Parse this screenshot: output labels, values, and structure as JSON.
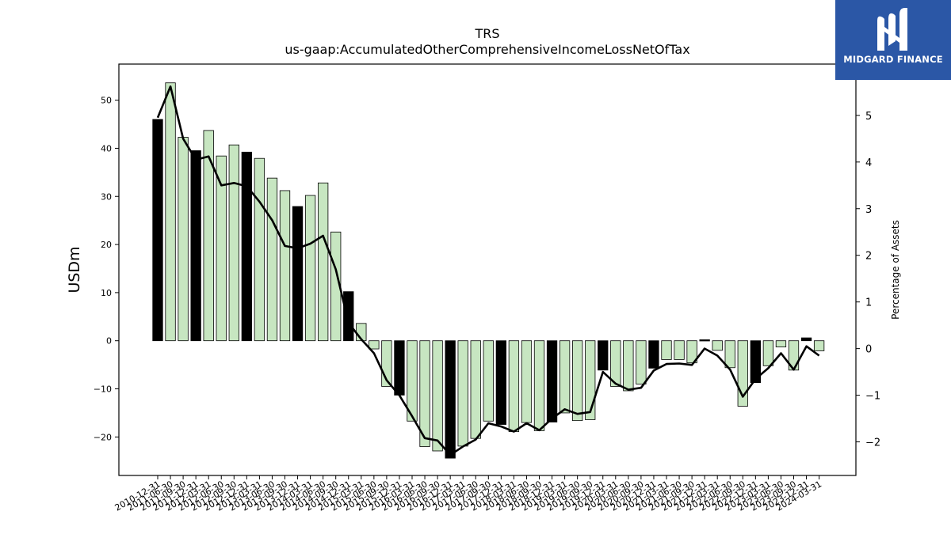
{
  "chart_data": {
    "type": "bar+line",
    "title": "TRS",
    "subtitle": "us-gaap:AccumulatedOtherComprehensiveIncomeLossNetOfTax",
    "ylabel": "USDm",
    "y2label": "Percentage of Assets",
    "ylim": [
      -28,
      57.5
    ],
    "y2lim": [
      -2.72,
      6.1
    ],
    "yticks": [
      -20,
      -10,
      0,
      10,
      20,
      30,
      40,
      50
    ],
    "y2ticks": [
      -2,
      -1,
      0,
      1,
      2,
      3,
      4,
      5
    ],
    "grid": false,
    "categories": [
      "2010-12-31",
      "2011-06-30",
      "2011-09-30",
      "2011-12-31",
      "2012-03-31",
      "2012-06-30",
      "2012-09-30",
      "2012-12-31",
      "2013-03-31",
      "2013-06-30",
      "2013-09-30",
      "2013-12-31",
      "2014-03-31",
      "2014-06-30",
      "2014-09-30",
      "2014-12-31",
      "2015-03-31",
      "2015-06-30",
      "2015-09-30",
      "2015-12-31",
      "2016-03-31",
      "2016-06-30",
      "2016-09-30",
      "2016-12-31",
      "2017-03-31",
      "2017-06-30",
      "2017-09-30",
      "2017-12-31",
      "2018-03-31",
      "2018-06-30",
      "2018-09-30",
      "2018-12-31",
      "2019-03-31",
      "2019-06-30",
      "2019-09-30",
      "2019-12-31",
      "2020-03-31",
      "2020-06-30",
      "2020-09-30",
      "2020-12-31",
      "2021-03-31",
      "2021-06-30",
      "2021-09-30",
      "2021-12-31",
      "2022-03-31",
      "2022-06-30",
      "2022-09-30",
      "2022-12-31",
      "2023-03-31",
      "2023-06-30",
      "2023-09-30",
      "2023-12-31",
      "2024-03-31"
    ],
    "bar_values": [
      46.0,
      53.6,
      42.3,
      39.5,
      43.7,
      38.4,
      40.7,
      39.2,
      37.9,
      33.8,
      31.2,
      27.9,
      30.2,
      32.8,
      22.6,
      10.2,
      3.6,
      -1.7,
      -9.5,
      -11.3,
      -16.7,
      -22.0,
      -22.9,
      -24.4,
      -21.9,
      -20.3,
      -16.7,
      -17.4,
      -18.9,
      -17.0,
      -18.7,
      -16.9,
      -15.0,
      -16.6,
      -16.4,
      -6.1,
      -9.5,
      -10.4,
      -9.0,
      -5.7,
      -3.9,
      -3.9,
      -4.6,
      0.2,
      -2.0,
      -5.6,
      -13.6,
      -8.7,
      -5.2,
      -1.3,
      -6.1,
      0.6,
      -2.1
    ],
    "bar_highlight": [
      true,
      false,
      false,
      true,
      false,
      false,
      false,
      true,
      false,
      false,
      false,
      true,
      false,
      false,
      false,
      true,
      false,
      false,
      false,
      true,
      false,
      false,
      false,
      true,
      false,
      false,
      false,
      true,
      false,
      false,
      false,
      true,
      false,
      false,
      false,
      true,
      false,
      false,
      false,
      true,
      false,
      false,
      false,
      true,
      false,
      false,
      false,
      true,
      false,
      false,
      false,
      true,
      false
    ],
    "line_values": [
      4.95,
      5.62,
      4.5,
      4.05,
      4.12,
      3.5,
      3.55,
      3.48,
      3.15,
      2.75,
      2.2,
      2.15,
      2.25,
      2.42,
      1.7,
      0.55,
      0.2,
      -0.1,
      -0.68,
      -1.0,
      -1.45,
      -1.92,
      -1.97,
      -2.28,
      -2.1,
      -1.95,
      -1.6,
      -1.67,
      -1.78,
      -1.6,
      -1.75,
      -1.5,
      -1.3,
      -1.4,
      -1.36,
      -0.5,
      -0.75,
      -0.88,
      -0.84,
      -0.47,
      -0.33,
      -0.32,
      -0.35,
      0.0,
      -0.15,
      -0.45,
      -1.03,
      -0.65,
      -0.42,
      -0.1,
      -0.45,
      0.05,
      -0.15
    ],
    "colors": {
      "bar": "#c7e6c1",
      "bar_highlight": "#000000",
      "line": "#000000"
    }
  },
  "logo": {
    "text": "MIDGARD FINANCE",
    "background": "#2b57a6"
  }
}
